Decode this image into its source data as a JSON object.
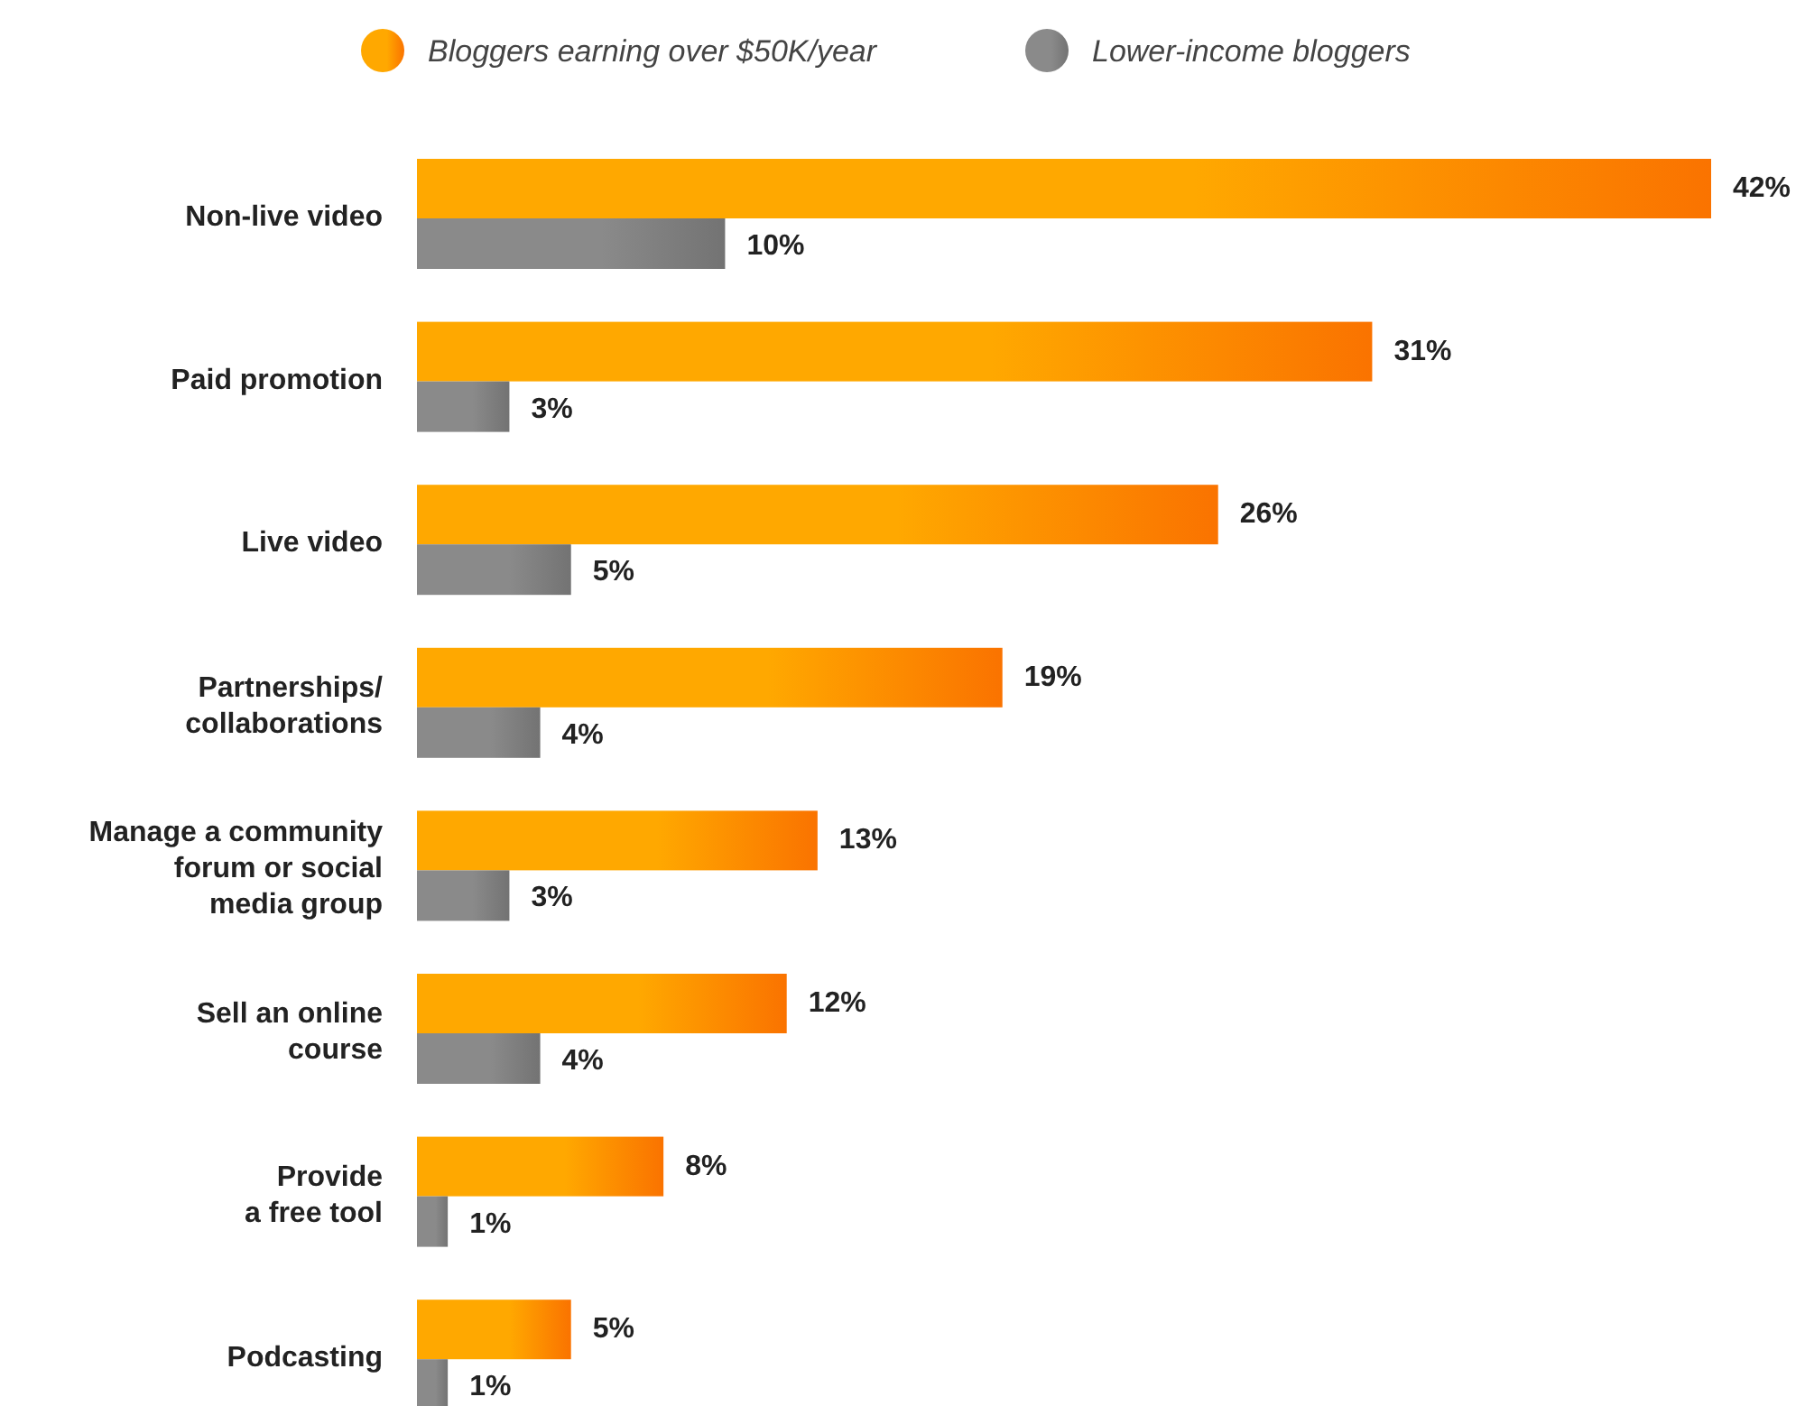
{
  "chart_data": {
    "type": "bar",
    "orientation": "horizontal",
    "legend": "top",
    "categories": [
      "Non-live video",
      "Paid promotion",
      "Live video",
      "Partnerships/\ncollaborations",
      "Manage a community\nforum or social\nmedia group",
      "Sell an online\ncourse",
      "Provide\na free tool",
      "Podcasting"
    ],
    "series": [
      {
        "name": "Bloggers earning over $50K/year",
        "color": "#ffa800",
        "values": [
          42,
          31,
          26,
          19,
          13,
          12,
          8,
          5
        ],
        "value_labels": [
          "42%",
          "31%",
          "26%",
          "19%",
          "13%",
          "12%",
          "8%",
          "5%"
        ]
      },
      {
        "name": "Lower-income bloggers",
        "color": "#8a8a8a",
        "values": [
          10,
          3,
          5,
          4,
          3,
          4,
          1,
          1
        ],
        "value_labels": [
          "10%",
          "3%",
          "5%",
          "4%",
          "3%",
          "4%",
          "1%",
          "1%"
        ]
      }
    ]
  }
}
